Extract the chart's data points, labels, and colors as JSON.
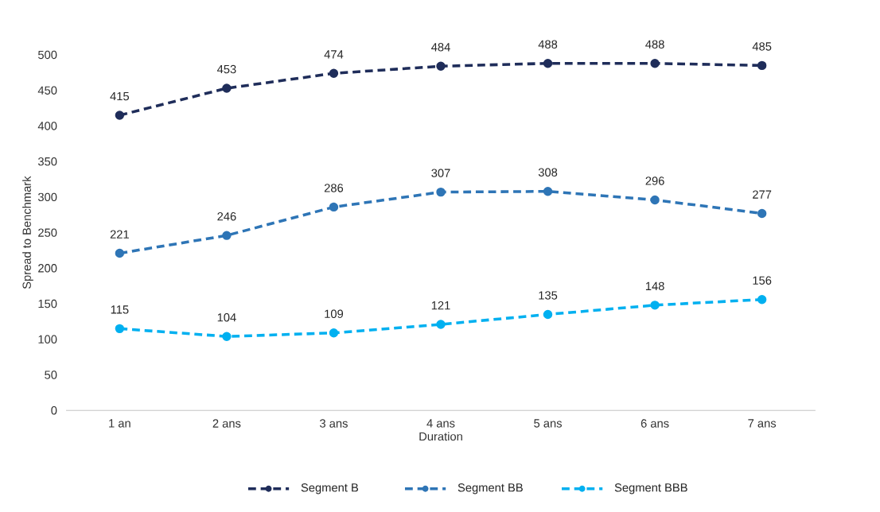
{
  "chart_data": {
    "type": "line",
    "xlabel": "Duration",
    "ylabel": "Spread to Benchmark",
    "categories": [
      "1 an",
      "2 ans",
      "3 ans",
      "4 ans",
      "5 ans",
      "6 ans",
      "7 ans"
    ],
    "series": [
      {
        "name": "Segment B",
        "color": "#1f2d5a",
        "values": [
          415,
          453,
          474,
          484,
          488,
          488,
          485
        ]
      },
      {
        "name": "Segment BB",
        "color": "#2e75b6",
        "values": [
          221,
          246,
          286,
          307,
          308,
          296,
          277
        ]
      },
      {
        "name": "Segment BBB",
        "color": "#00b0f0",
        "values": [
          115,
          104,
          109,
          121,
          135,
          148,
          156
        ]
      }
    ],
    "ylim": [
      0,
      500
    ],
    "yticks": [
      0,
      50,
      100,
      150,
      200,
      250,
      300,
      350,
      400,
      450,
      500
    ],
    "data_labels": true,
    "grid": false,
    "legend": "bottom",
    "marker": "circle",
    "line_style": "dashed"
  }
}
